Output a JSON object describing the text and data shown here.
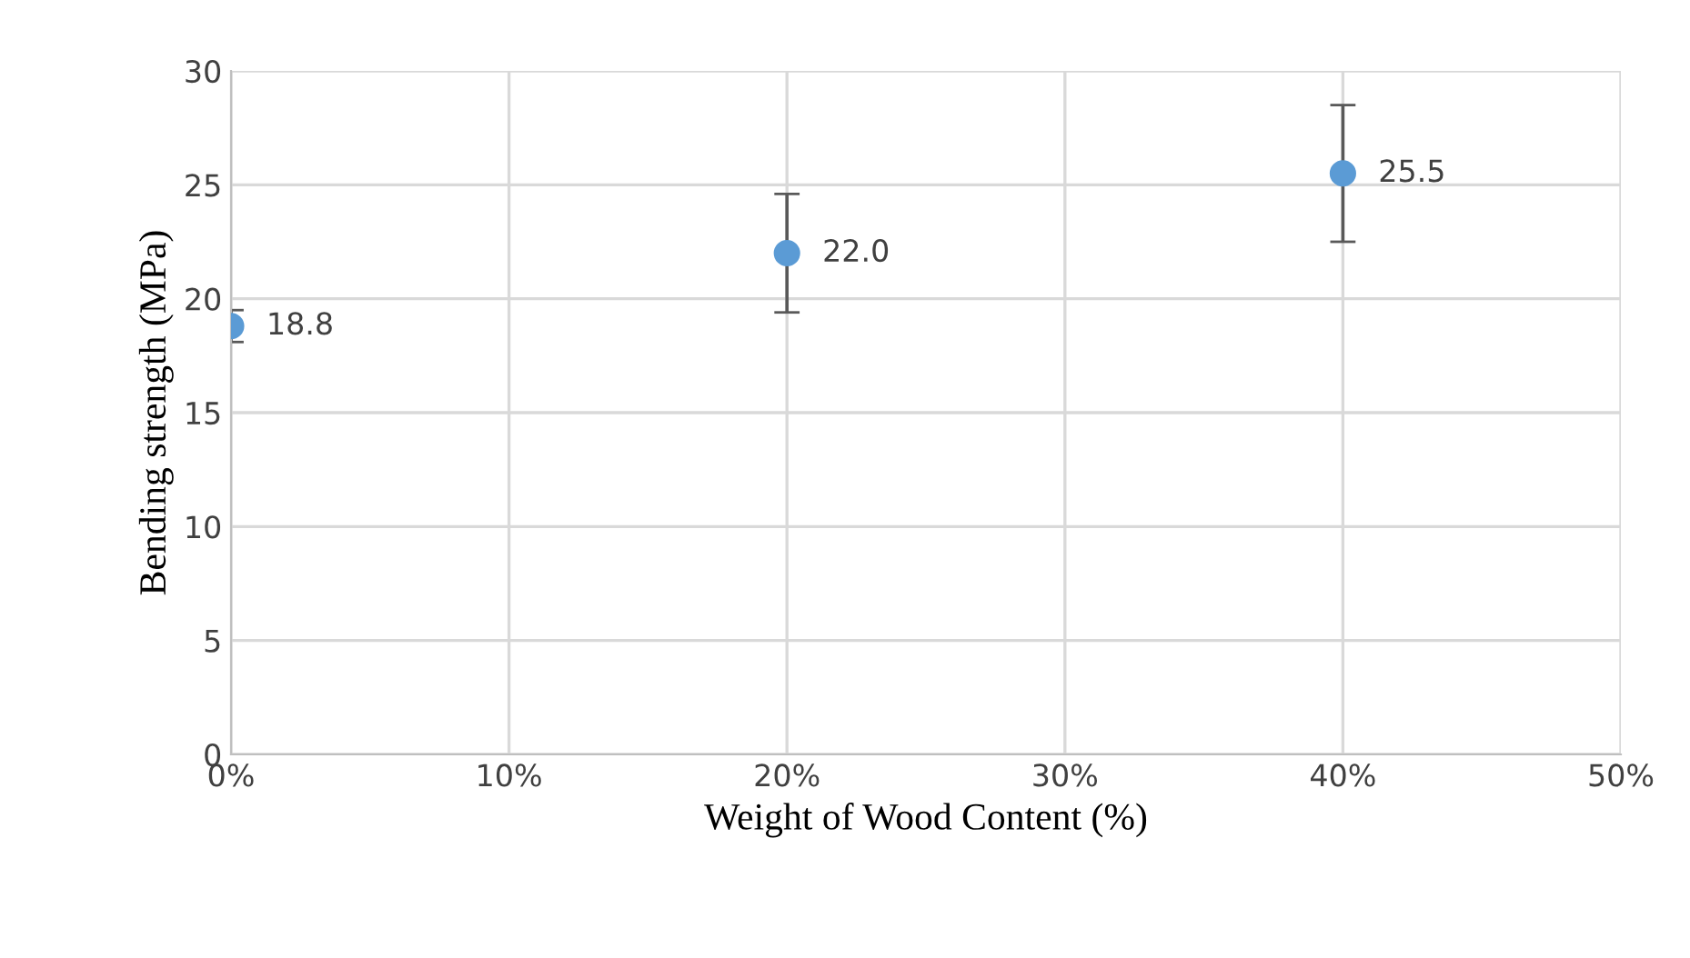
{
  "chart_data": {
    "type": "scatter",
    "xlabel": "Weight of Wood Content (%)",
    "ylabel": "Bending strength (MPa)",
    "x": [
      0,
      20,
      40
    ],
    "values": [
      18.8,
      22.0,
      25.5
    ],
    "errors": [
      0.7,
      2.6,
      3.0
    ],
    "color": "#5b9bd5",
    "marker": "circle",
    "value_labels": [
      "18.8",
      "22.0",
      "25.5"
    ],
    "xlim": [
      0,
      50
    ],
    "xticks": [
      {
        "value": 0,
        "label": "0%"
      },
      {
        "value": 10,
        "label": "10%"
      },
      {
        "value": 20,
        "label": "20%"
      },
      {
        "value": 30,
        "label": "30%"
      },
      {
        "value": 40,
        "label": "40%"
      },
      {
        "value": 50,
        "label": "50%"
      }
    ],
    "ylim": [
      0,
      30
    ],
    "yticks": [
      0,
      5,
      10,
      15,
      20,
      25,
      30
    ],
    "grid": true,
    "legend": false
  }
}
